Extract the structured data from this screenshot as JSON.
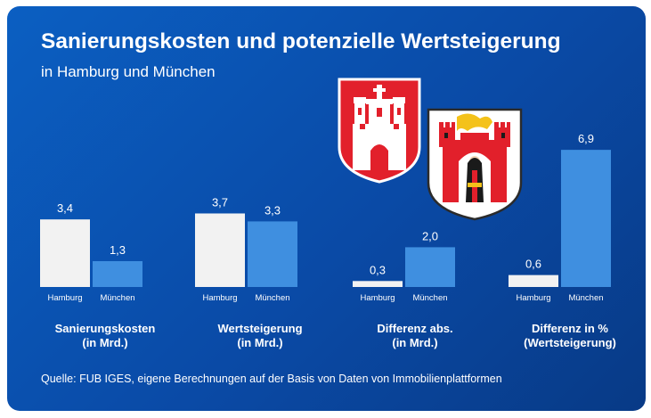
{
  "header": {
    "title": "Sanierungskosten und potenzielle Wertsteigerung",
    "subtitle": "in Hamburg und München"
  },
  "crests": {
    "hamburg": {
      "icon": "hamburg-coat-of-arms-icon",
      "color": "#e2202b"
    },
    "muenchen": {
      "icon": "munich-coat-of-arms-icon",
      "color": "#e2202b"
    }
  },
  "colors": {
    "background": "#0a4aa6",
    "hamburg_bar": "#f2f2f2",
    "muenchen_bar": "#3f8fe0",
    "text": "#ffffff"
  },
  "chart_data": {
    "type": "bar",
    "series_names": [
      "Hamburg",
      "München"
    ],
    "groups": [
      {
        "label_line1": "Sanierungskosten",
        "label_line2": "(in Mrd.)",
        "categories": [
          "Hamburg",
          "München"
        ],
        "values": [
          3.4,
          1.3
        ],
        "value_labels": [
          "3,4",
          "1,3"
        ]
      },
      {
        "label_line1": "Wertsteigerung",
        "label_line2": "(in Mrd.)",
        "categories": [
          "Hamburg",
          "München"
        ],
        "values": [
          3.7,
          3.3
        ],
        "value_labels": [
          "3,7",
          "3,3"
        ]
      },
      {
        "label_line1": "Differenz abs.",
        "label_line2": "(in Mrd.)",
        "categories": [
          "Hamburg",
          "München"
        ],
        "values": [
          0.3,
          2.0
        ],
        "value_labels": [
          "0,3",
          "2,0"
        ]
      },
      {
        "label_line1": "Differenz in %",
        "label_line2": "(Wertsteigerung)",
        "categories": [
          "Hamburg",
          "München"
        ],
        "values": [
          0.6,
          6.9
        ],
        "value_labels": [
          "0,6",
          "6,9"
        ]
      }
    ],
    "grid": false,
    "legend": "none"
  },
  "footer": {
    "source": "Quelle: FUB IGES, eigene Berechnungen auf der Basis von Daten von Immobilienplattformen"
  }
}
